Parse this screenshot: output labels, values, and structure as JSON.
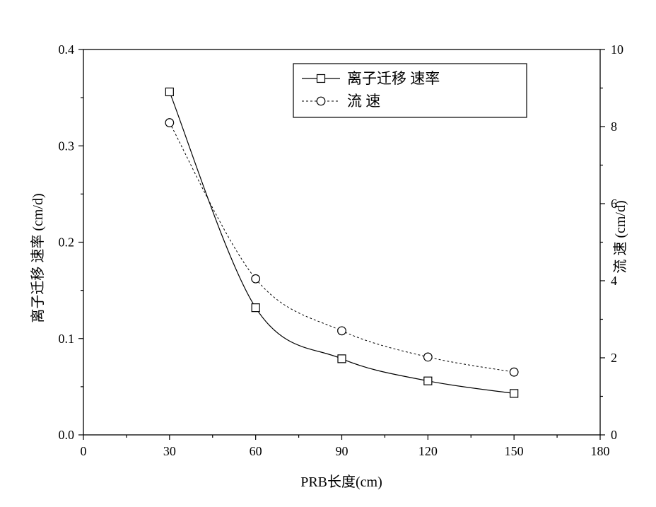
{
  "chart_data": {
    "type": "line",
    "x": [
      30,
      60,
      90,
      120,
      150
    ],
    "xlabel": "PRB长度(cm)",
    "ylabel_left": "离子迁移 速率 (cm/d)",
    "ylabel_right": "流 速 (cm/d)",
    "xlim": [
      0,
      180
    ],
    "ylim_left": [
      0.0,
      0.4
    ],
    "ylim_right": [
      0,
      10
    ],
    "x_ticks": [
      0,
      30,
      60,
      90,
      120,
      150,
      180
    ],
    "y_left_ticks": [
      "0.0",
      "0.1",
      "0.2",
      "0.3",
      "0.4"
    ],
    "y_right_ticks": [
      "0",
      "2",
      "4",
      "6",
      "8",
      "10"
    ],
    "grid": false,
    "legend_position": "top-right",
    "series": [
      {
        "name": "离子迁移 速率",
        "axis": "left",
        "values": [
          0.356,
          0.132,
          0.079,
          0.056,
          0.043
        ],
        "marker": "square",
        "line": "solid"
      },
      {
        "name": "流 速",
        "axis": "right",
        "values": [
          8.1,
          4.05,
          2.7,
          2.02,
          1.63
        ],
        "marker": "circle",
        "line": "dashed"
      }
    ]
  }
}
